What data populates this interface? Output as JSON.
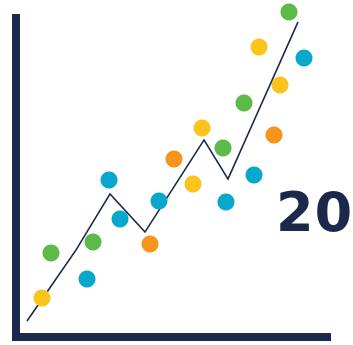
{
  "colors": {
    "navy": "#1b2a4a",
    "yellow": "#fbc31b",
    "green": "#5db948",
    "cyan": "#08a7cc",
    "orange": "#f7941e",
    "white": "#ffffff"
  },
  "headline": {
    "number": "20"
  },
  "decoration": {
    "dot_colors": [
      "yellow",
      "green",
      "cyan",
      "green",
      "cyan",
      "cyan",
      "orange",
      "cyan",
      "orange",
      "yellow",
      "yellow",
      "green",
      "cyan",
      "green",
      "cyan",
      "yellow",
      "orange",
      "yellow",
      "cyan",
      "green"
    ]
  }
}
